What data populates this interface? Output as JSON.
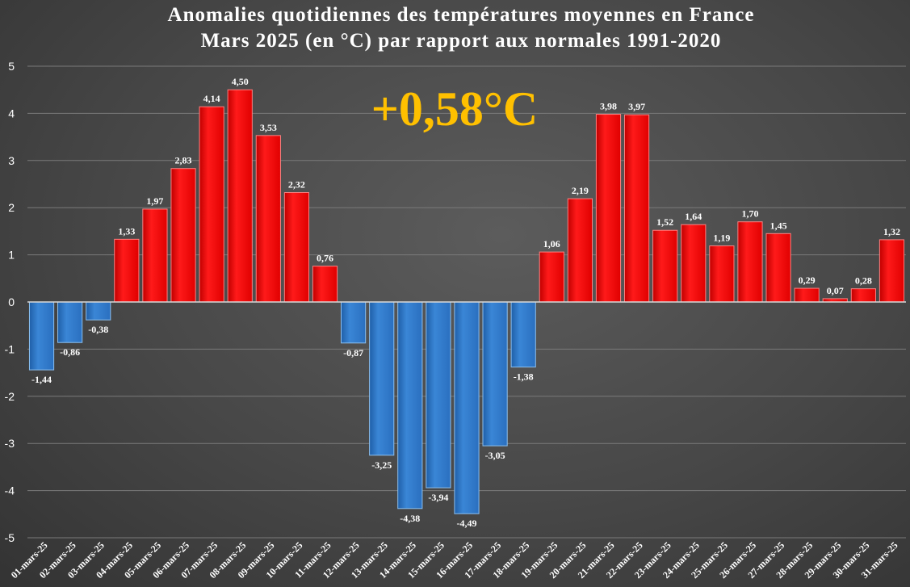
{
  "chart_data": {
    "type": "bar",
    "title_line1": "Anomalies quotidiennes des températures moyennes en France",
    "title_line2": "Mars 2025 (en °C) par rapport aux normales 1991-2020",
    "xlabel": "",
    "ylabel": "",
    "ylim": [
      -5,
      5
    ],
    "yticks": [
      "5",
      "4",
      "3",
      "2",
      "1",
      "0",
      "-1",
      "-2",
      "-3",
      "-4",
      "-5"
    ],
    "grid": true,
    "annotation": "+0,58°C",
    "colors": {
      "positive": "#ff0000",
      "negative": "#2e75c8",
      "annotation": "#ffc000"
    },
    "categories": [
      "01-mars-25",
      "02-mars-25",
      "03-mars-25",
      "04-mars-25",
      "05-mars-25",
      "06-mars-25",
      "07-mars-25",
      "08-mars-25",
      "09-mars-25",
      "10-mars-25",
      "11-mars-25",
      "12-mars-25",
      "13-mars-25",
      "14-mars-25",
      "15-mars-25",
      "16-mars-25",
      "17-mars-25",
      "18-mars-25",
      "19-mars-25",
      "20-mars-25",
      "21-mars-25",
      "22-mars-25",
      "23-mars-25",
      "24-mars-25",
      "25-mars-25",
      "26-mars-25",
      "27-mars-25",
      "28-mars-25",
      "29-mars-25",
      "30-mars-25",
      "31-mars-25"
    ],
    "values": [
      -1.44,
      -0.86,
      -0.38,
      1.33,
      1.97,
      2.83,
      4.14,
      4.5,
      3.53,
      2.32,
      0.76,
      -0.87,
      -3.25,
      -4.38,
      -3.94,
      -4.49,
      -3.05,
      -1.38,
      1.06,
      2.19,
      3.98,
      3.97,
      1.52,
      1.64,
      1.19,
      1.7,
      1.45,
      0.29,
      0.07,
      0.28,
      1.32
    ],
    "value_labels": [
      "-1,44",
      "-0,86",
      "-0,38",
      "1,33",
      "1,97",
      "2,83",
      "4,14",
      "4,50",
      "3,53",
      "2,32",
      "0,76",
      "-0,87",
      "-3,25",
      "-4,38",
      "-3,94",
      "-4,49",
      "-3,05",
      "-1,38",
      "1,06",
      "2,19",
      "3,98",
      "3,97",
      "1,52",
      "1,64",
      "1,19",
      "1,70",
      "1,45",
      "0,29",
      "0,07",
      "0,28",
      "1,32"
    ]
  }
}
